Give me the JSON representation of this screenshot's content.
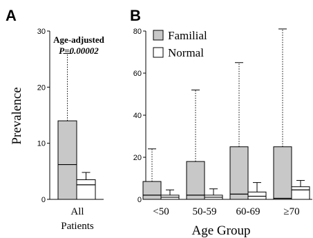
{
  "chart_data": [
    {
      "panel": "A",
      "type": "bar",
      "categories": [
        "All Patients"
      ],
      "category_lines": [
        [
          "All",
          "Patients"
        ]
      ],
      "ylabel": "Prevalence",
      "ylim": [
        0,
        30
      ],
      "yticks": [
        0,
        10,
        20,
        30
      ],
      "annotation": [
        "Age-adjusted",
        "P=0.00002"
      ],
      "series": [
        {
          "name": "Familial",
          "values": [
            14
          ],
          "median": [
            6.2
          ],
          "whisker_high": [
            26
          ],
          "color": "#c8c8c8"
        },
        {
          "name": "Normal",
          "values": [
            3.5
          ],
          "median": [
            2.6
          ],
          "whisker_high": [
            4.8
          ],
          "color": "#ffffff"
        }
      ]
    },
    {
      "panel": "B",
      "type": "bar",
      "categories": [
        "<50",
        "50-59",
        "60-69",
        "≥70"
      ],
      "xlabel": "Age Group",
      "ylim": [
        0,
        80
      ],
      "yticks": [
        0,
        20,
        40,
        60,
        80
      ],
      "legend": "top-left",
      "series": [
        {
          "name": "Familial",
          "values": [
            8.5,
            18,
            25,
            25
          ],
          "median": [
            2,
            2,
            2.5,
            0.5
          ],
          "whisker_high": [
            24,
            52,
            65,
            81
          ],
          "color": "#c8c8c8"
        },
        {
          "name": "Normal",
          "values": [
            2,
            2,
            3.5,
            6
          ],
          "median": [
            1,
            1,
            1.5,
            4.5
          ],
          "whisker_high": [
            4.5,
            5,
            8,
            9
          ],
          "color": "#ffffff"
        }
      ]
    }
  ]
}
